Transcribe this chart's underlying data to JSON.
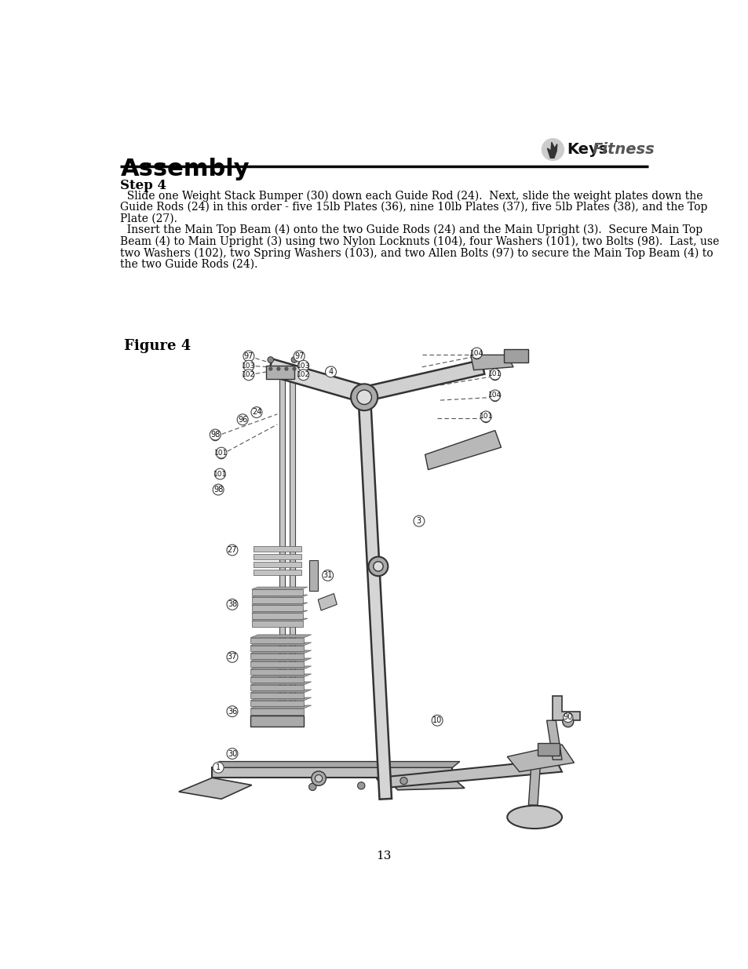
{
  "title": "Assembly",
  "step_heading": "Step 4",
  "para_lines": [
    "  Slide one Weight Stack Bumper (30) down each Guide Rod (24).  Next, slide the weight plates down the",
    "Guide Rods (24) in this order - five 15lb Plates (36), nine 10lb Plates (37), five 5lb Plates (38), and the Top",
    "Plate (27).",
    "  Insert the Main Top Beam (4) onto the two Guide Rods (24) and the Main Upright (3).  Secure Main Top",
    "Beam (4) to Main Upright (3) using two Nylon Locknuts (104), four Washers (101), two Bolts (98).  Last, use",
    "two Washers (102), two Spring Washers (103), and two Allen Bolts (97) to secure the Main Top Beam (4) to",
    "the two Guide Rods (24)."
  ],
  "figure_label": "Figure 4",
  "page_number": "13",
  "bg_color": "#ffffff",
  "text_color": "#000000"
}
